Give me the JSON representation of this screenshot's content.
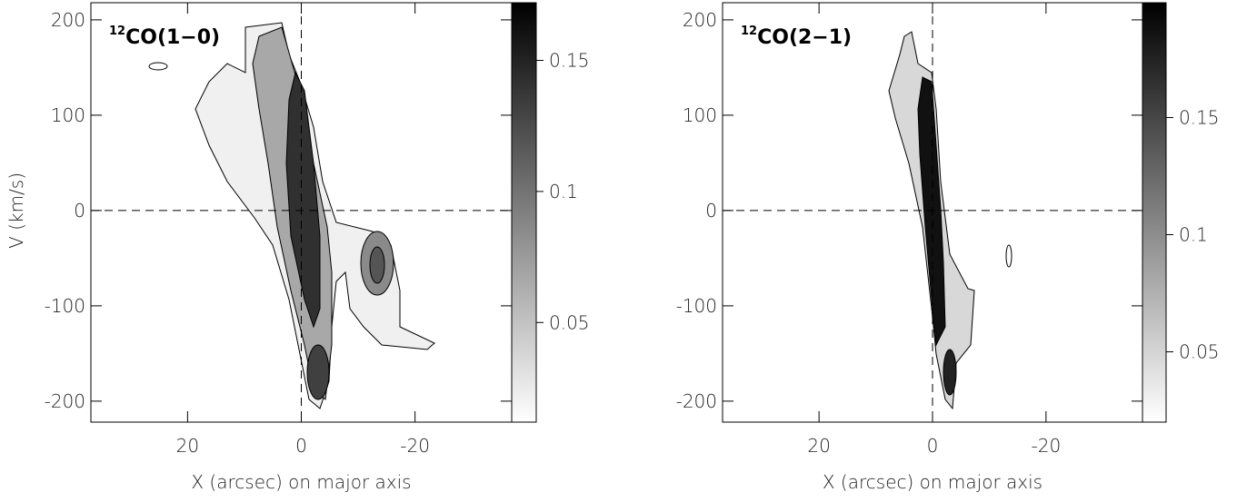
{
  "chart_data": [
    {
      "type": "heatmap",
      "title_sup": "12",
      "title": "CO(1−0)",
      "xlabel": "X (arcsec) on major axis",
      "ylabel": "V (km/s)",
      "xlim": [
        37,
        -37
      ],
      "xticks": [
        20,
        0,
        -20
      ],
      "ylim": [
        -222,
        218
      ],
      "yticks": [
        -200,
        -100,
        0,
        100,
        200
      ],
      "clim": [
        0.012,
        0.172
      ],
      "cticks": [
        0.05,
        0.1,
        0.15
      ]
    },
    {
      "type": "heatmap",
      "title_sup": "12",
      "title": "CO(2−1)",
      "xlabel": "X (arcsec) on major axis",
      "xlim": [
        37,
        -37
      ],
      "xticks": [
        20,
        0,
        -20
      ],
      "ylim": [
        -222,
        218
      ],
      "yticks": [
        -200,
        -100,
        0,
        100,
        200
      ],
      "clim": [
        0.02,
        0.199
      ],
      "cticks": [
        0.05,
        0.1,
        0.15
      ]
    }
  ]
}
